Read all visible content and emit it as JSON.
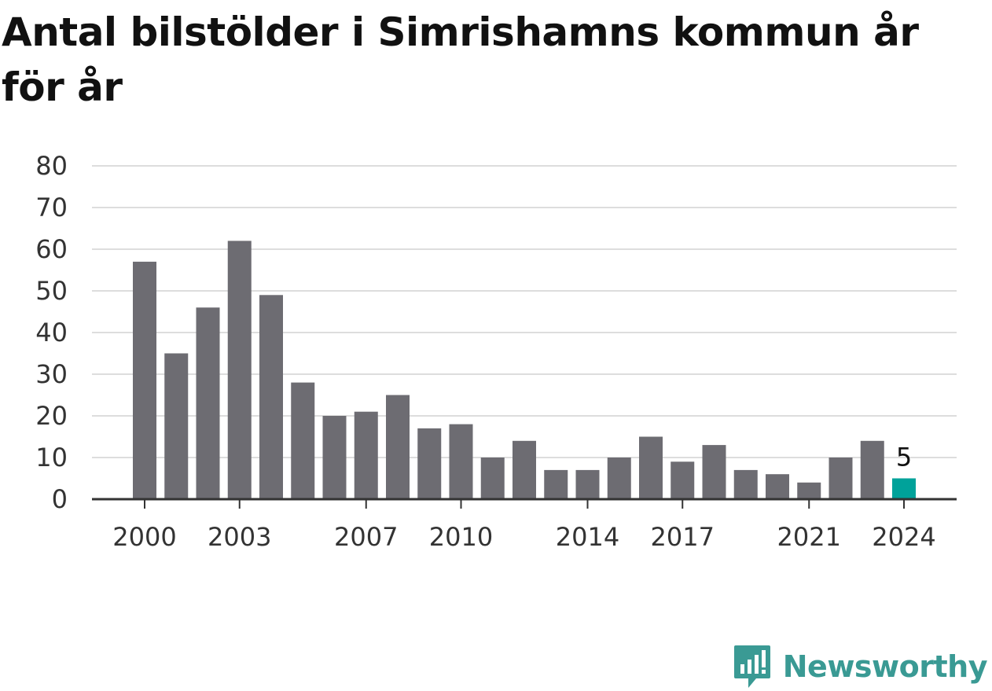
{
  "title": "Antal bilstölder i Simrishamns kommun år för år",
  "brand": {
    "name": "Newsworthy",
    "color": "#3a9a94",
    "icon": "bar-chart-speech-bubble-icon"
  },
  "colors": {
    "bar": "#6d6c72",
    "highlight": "#00a29a",
    "grid": "#dddddd",
    "axis": "#333333"
  },
  "chart_data": {
    "type": "bar",
    "title": "Antal bilstölder i Simrishamns kommun år för år",
    "xlabel": "",
    "ylabel": "",
    "ylim": [
      0,
      80
    ],
    "yticks": [
      0,
      10,
      20,
      30,
      40,
      50,
      60,
      70,
      80
    ],
    "xtick_labels": [
      "2000",
      "2003",
      "2007",
      "2010",
      "2014",
      "2017",
      "2021",
      "2024"
    ],
    "grid": true,
    "categories": [
      "2000",
      "2001",
      "2002",
      "2003",
      "2004",
      "2005",
      "2006",
      "2007",
      "2008",
      "2009",
      "2010",
      "2011",
      "2012",
      "2013",
      "2014",
      "2015",
      "2016",
      "2017",
      "2018",
      "2019",
      "2020",
      "2021",
      "2022",
      "2023",
      "2024"
    ],
    "values": [
      57,
      35,
      46,
      62,
      49,
      28,
      20,
      21,
      25,
      17,
      18,
      10,
      14,
      7,
      7,
      10,
      15,
      9,
      13,
      7,
      6,
      4,
      10,
      14,
      5
    ],
    "highlight": {
      "category": "2024",
      "label": "5"
    }
  }
}
